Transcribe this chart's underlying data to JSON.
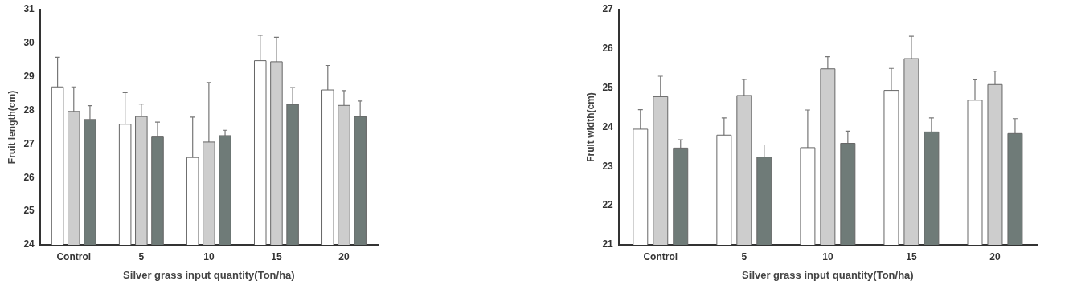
{
  "chart_data": [
    {
      "type": "bar",
      "xlabel": "Silver grass input quantity(Ton/ha)",
      "ylabel": "Fruit length(cm)",
      "categories": [
        "Control",
        "5",
        "10",
        "15",
        "20"
      ],
      "ylim": [
        24,
        31
      ],
      "yticks": [
        24,
        25,
        26,
        27,
        28,
        29,
        30,
        31
      ],
      "grid": false,
      "legend": false,
      "series": [
        {
          "color": "#ffffff",
          "values": [
            28.7,
            27.59,
            26.6,
            29.48,
            28.61
          ],
          "errors": [
            [
              28.7,
              29.58
            ],
            [
              27.59,
              28.53
            ],
            [
              26.6,
              27.8
            ],
            [
              29.48,
              30.24
            ],
            [
              28.61,
              29.34
            ]
          ]
        },
        {
          "color": "#cdcdcd",
          "values": [
            27.97,
            27.82,
            27.06,
            29.45,
            28.15
          ],
          "errors": [
            [
              27.97,
              28.7
            ],
            [
              27.82,
              28.19
            ],
            [
              27.06,
              28.83
            ],
            [
              29.45,
              30.18
            ],
            [
              28.15,
              28.59
            ]
          ]
        },
        {
          "color": "#6f7b78",
          "values": [
            27.73,
            27.21,
            27.25,
            28.18,
            27.82
          ],
          "errors": [
            [
              27.73,
              28.14
            ],
            [
              27.21,
              27.65
            ],
            [
              27.25,
              27.41
            ],
            [
              28.18,
              28.68
            ],
            [
              27.82,
              28.28
            ]
          ]
        }
      ]
    },
    {
      "type": "bar",
      "xlabel": "Silver grass input quantity(Ton/ha)",
      "ylabel": "Fruit width(cm)",
      "categories": [
        "Control",
        "5",
        "10",
        "15",
        "20"
      ],
      "ylim": [
        21,
        27
      ],
      "yticks": [
        21,
        22,
        23,
        24,
        25,
        26,
        27
      ],
      "grid": false,
      "legend": false,
      "series": [
        {
          "color": "#ffffff",
          "values": [
            23.95,
            23.8,
            23.48,
            24.94,
            24.69
          ],
          "errors": [
            [
              23.95,
              24.45
            ],
            [
              23.8,
              24.24
            ],
            [
              23.48,
              24.44
            ],
            [
              24.94,
              25.5
            ],
            [
              24.69,
              25.21
            ]
          ]
        },
        {
          "color": "#cdcdcd",
          "values": [
            24.78,
            24.81,
            25.49,
            25.75,
            25.09
          ],
          "errors": [
            [
              24.78,
              25.3
            ],
            [
              24.81,
              25.22
            ],
            [
              25.49,
              25.8
            ],
            [
              25.75,
              26.32
            ],
            [
              25.09,
              25.43
            ]
          ]
        },
        {
          "color": "#6f7b78",
          "values": [
            23.47,
            23.24,
            23.59,
            23.88,
            23.84
          ],
          "errors": [
            [
              23.47,
              23.68
            ],
            [
              23.24,
              23.55
            ],
            [
              23.59,
              23.9
            ],
            [
              23.88,
              24.24
            ],
            [
              23.84,
              24.22
            ]
          ]
        }
      ]
    }
  ]
}
